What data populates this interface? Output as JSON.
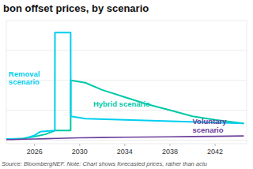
{
  "chart_data": {
    "type": "line",
    "title": "bon offset prices, by scenario",
    "subtitle": "Source: BloombergNEF. Note: Chart shows forecasted prices, rather than actu",
    "series": [
      {
        "color": "#00cfef",
        "x": [
          2023.5,
          2024,
          2025,
          2026,
          2026.5,
          2027.8,
          2027.81,
          2029.2,
          2029.21,
          2030.5,
          2044.5
        ],
        "values": [
          1,
          1,
          1,
          4,
          7,
          8,
          90,
          90,
          20,
          18,
          14
        ]
      },
      {
        "color": "#00c9a7",
        "x": [
          2023.5,
          2024,
          2025,
          2026,
          2027,
          2027.8,
          2029.2,
          2029.21,
          2030.5,
          2032,
          2034,
          2036,
          2038,
          2040,
          2042,
          2044.5
        ],
        "values": [
          1,
          1,
          1.5,
          3,
          5,
          8,
          8,
          50,
          48,
          42,
          36,
          30,
          25,
          20,
          17,
          14
        ]
      },
      {
        "color": "#6a3d9a",
        "x": [
          2023.5,
          2024,
          2025,
          2026,
          2027,
          2028,
          2030,
          2032,
          2034,
          2036,
          2038,
          2040,
          2042,
          2044.5
        ],
        "values": [
          0.5,
          0.5,
          0.8,
          1,
          1.2,
          1.5,
          2,
          2.2,
          2.4,
          2.6,
          2.8,
          3,
          3.2,
          3.5
        ]
      }
    ],
    "annotations": [
      {
        "text": "Removal\nscenario",
        "x": 2023.7,
        "y": 52,
        "color": "#00cfef"
      },
      {
        "text": "Hybrid scenario",
        "x": 2031.2,
        "y": 30,
        "color": "#00c9a7"
      },
      {
        "text": "Voluntary\nscenario",
        "x": 2040.0,
        "y": 12,
        "color": "#6a3d9a"
      }
    ],
    "xlim": [
      2023.5,
      2044.8
    ],
    "ylim": [
      -3,
      100
    ],
    "xticks": [
      2026,
      2030,
      2034,
      2038,
      2042
    ],
    "yticks": [
      0,
      25,
      50,
      75
    ],
    "grid": true,
    "tick_labels": "x"
  }
}
